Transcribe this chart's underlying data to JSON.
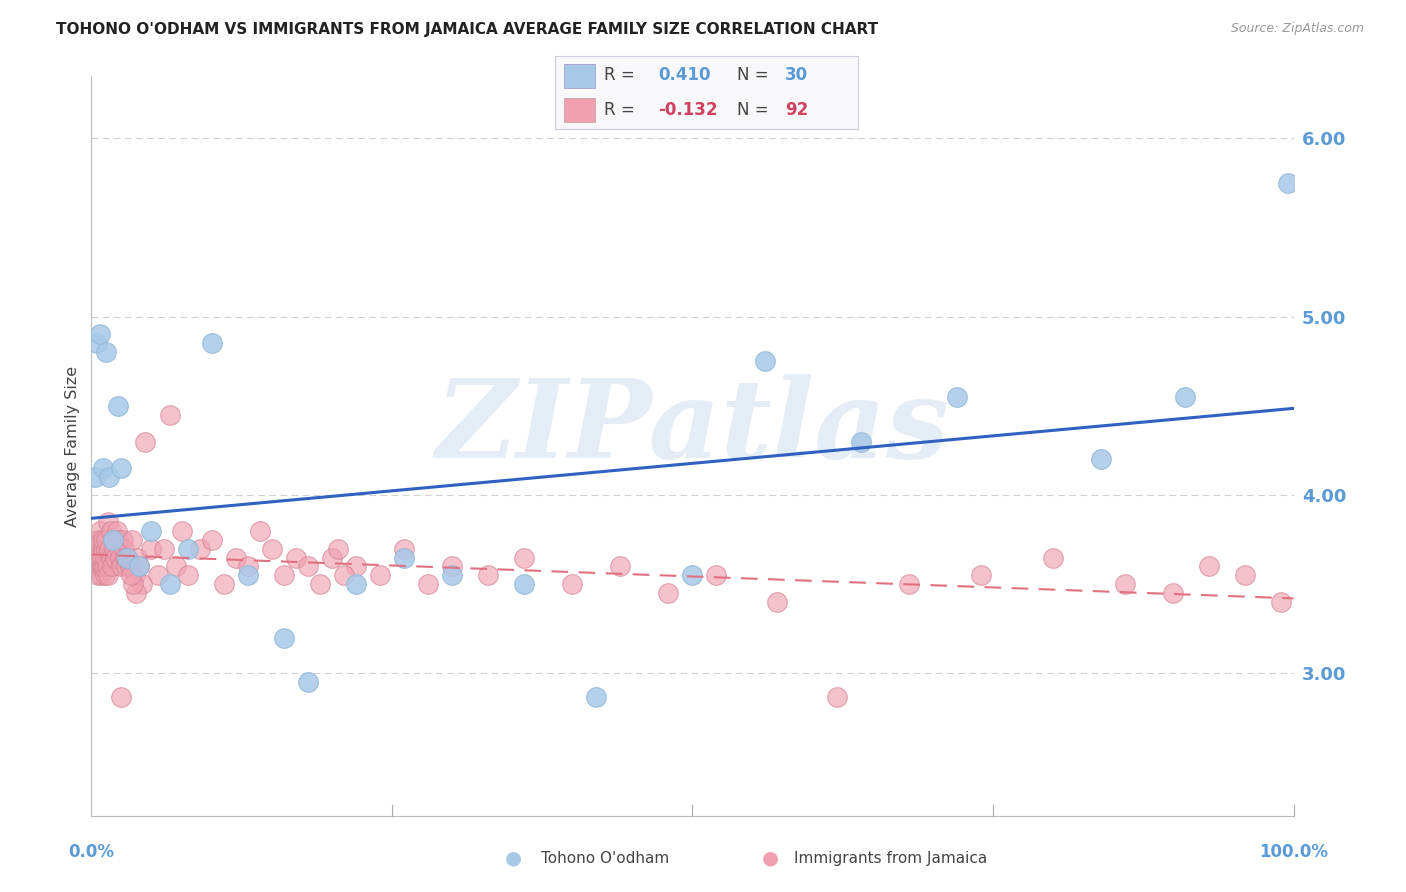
{
  "title": "TOHONO O'ODHAM VS IMMIGRANTS FROM JAMAICA AVERAGE FAMILY SIZE CORRELATION CHART",
  "source": "Source: ZipAtlas.com",
  "ylabel": "Average Family Size",
  "yaxis_ticks": [
    3.0,
    4.0,
    5.0,
    6.0
  ],
  "ymin": 2.2,
  "ymax": 6.35,
  "xmin": 0.0,
  "xmax": 100.0,
  "watermark": "ZIPatlas",
  "series1_label": "Tohono O'odham",
  "series1_R": 0.41,
  "series1_N": 30,
  "series1_color": "#a8c8e8",
  "series1_line_color": "#3060c0",
  "series2_label": "Immigrants from Jamaica",
  "series2_R": -0.132,
  "series2_N": 92,
  "series2_color": "#f0a0b0",
  "series2_line_color": "#e07080",
  "background_color": "#ffffff",
  "grid_color": "#d0d0d0",
  "title_fontsize": 11,
  "axis_color": "#5b9bd5",
  "series1_x": [
    0.3,
    0.5,
    0.7,
    1.0,
    1.2,
    1.5,
    1.8,
    2.2,
    2.5,
    3.0,
    4.0,
    5.0,
    6.5,
    8.0,
    10.0,
    13.0,
    16.0,
    18.0,
    22.0,
    26.0,
    30.0,
    36.0,
    42.0,
    50.0,
    56.0,
    64.0,
    72.0,
    84.0,
    91.0,
    99.5
  ],
  "series1_y": [
    4.1,
    4.85,
    4.9,
    4.15,
    4.8,
    4.1,
    3.75,
    4.5,
    4.15,
    3.65,
    3.6,
    3.8,
    3.5,
    3.7,
    4.85,
    3.55,
    3.2,
    2.95,
    3.5,
    3.65,
    3.55,
    3.5,
    2.87,
    3.55,
    4.75,
    4.3,
    4.55,
    4.2,
    4.55,
    5.75
  ],
  "series2_x": [
    0.2,
    0.3,
    0.4,
    0.5,
    0.55,
    0.6,
    0.65,
    0.7,
    0.75,
    0.8,
    0.85,
    0.9,
    0.95,
    1.0,
    1.05,
    1.1,
    1.15,
    1.2,
    1.25,
    1.3,
    1.35,
    1.4,
    1.5,
    1.6,
    1.65,
    1.7,
    1.8,
    1.9,
    2.0,
    2.1,
    2.2,
    2.3,
    2.4,
    2.5,
    2.6,
    2.7,
    2.8,
    2.9,
    3.0,
    3.2,
    3.4,
    3.6,
    3.8,
    4.0,
    4.5,
    5.0,
    5.5,
    6.0,
    6.5,
    7.0,
    7.5,
    8.0,
    9.0,
    10.0,
    11.0,
    12.0,
    13.0,
    14.0,
    15.0,
    16.0,
    17.0,
    18.0,
    19.0,
    20.0,
    22.0,
    24.0,
    26.0,
    28.0,
    30.0,
    33.0,
    36.0,
    40.0,
    44.0,
    48.0,
    52.0,
    57.0,
    62.0,
    68.0,
    74.0,
    80.0,
    86.0,
    90.0,
    93.0,
    96.0,
    99.0,
    20.5,
    21.0,
    4.2,
    3.7,
    3.5,
    2.5,
    3.3
  ],
  "series2_y": [
    3.6,
    3.65,
    3.7,
    3.75,
    3.55,
    3.6,
    3.65,
    3.75,
    3.8,
    3.55,
    3.6,
    3.65,
    3.7,
    3.75,
    3.6,
    3.55,
    3.65,
    3.7,
    3.75,
    3.6,
    3.55,
    3.85,
    3.7,
    3.65,
    3.8,
    3.6,
    3.75,
    3.7,
    3.65,
    3.8,
    3.75,
    3.7,
    3.65,
    3.6,
    3.75,
    3.7,
    3.65,
    3.6,
    3.65,
    3.6,
    3.75,
    3.55,
    3.65,
    3.6,
    4.3,
    3.7,
    3.55,
    3.7,
    4.45,
    3.6,
    3.8,
    3.55,
    3.7,
    3.75,
    3.5,
    3.65,
    3.6,
    3.8,
    3.7,
    3.55,
    3.65,
    3.6,
    3.5,
    3.65,
    3.6,
    3.55,
    3.7,
    3.5,
    3.6,
    3.55,
    3.65,
    3.5,
    3.6,
    3.45,
    3.55,
    3.4,
    2.87,
    3.5,
    3.55,
    3.65,
    3.5,
    3.45,
    3.6,
    3.55,
    3.4,
    3.7,
    3.55,
    3.5,
    3.45,
    3.5,
    2.87,
    3.55
  ]
}
